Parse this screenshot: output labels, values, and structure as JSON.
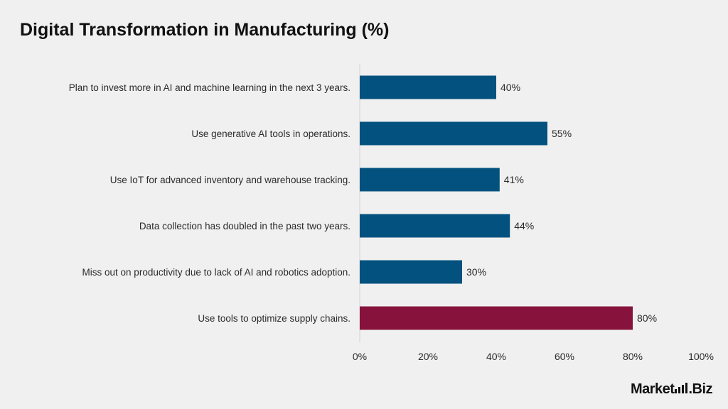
{
  "chart_data": {
    "type": "bar",
    "orientation": "horizontal",
    "title": "Digital Transformation in Manufacturing (%)",
    "categories": [
      "Plan to invest more in AI and machine learning in the next 3 years.",
      "Use generative AI tools in operations.",
      "Use IoT for advanced inventory and warehouse tracking.",
      "Data collection has doubled in the past two years.",
      "Miss out on productivity due to lack of AI and robotics adoption.",
      "Use tools to optimize supply chains."
    ],
    "values": [
      40,
      55,
      41,
      44,
      30,
      80
    ],
    "value_labels": [
      "40%",
      "55%",
      "41%",
      "44%",
      "30%",
      "80%"
    ],
    "bar_colors": [
      "#03517e",
      "#03517e",
      "#03517e",
      "#03517e",
      "#03517e",
      "#87133d"
    ],
    "xlim": [
      0,
      100
    ],
    "x_ticks": [
      0,
      20,
      40,
      60,
      80,
      100
    ],
    "x_tick_labels": [
      "0%",
      "20%",
      "40%",
      "60%",
      "80%",
      "100%"
    ],
    "xlabel": "",
    "ylabel": "",
    "grid": false,
    "legend": false
  },
  "branding": {
    "logo_text_left": "Market",
    "logo_text_right": ".Biz"
  }
}
